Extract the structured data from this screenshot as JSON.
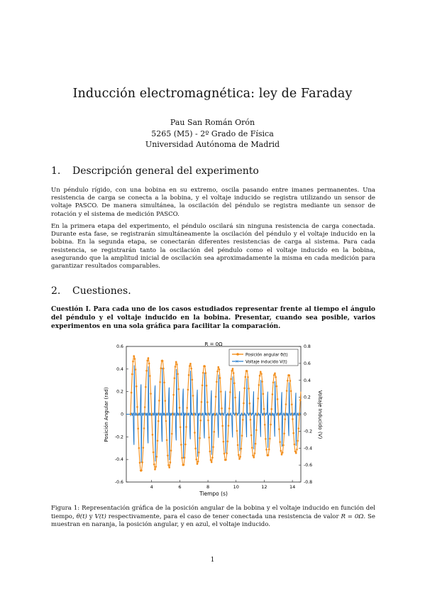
{
  "title": "Inducción electromagnética: ley de Faraday",
  "author": {
    "name": "Pau San Román Orón",
    "course": "5265 (M5) - 2º Grado de Física",
    "university": "Universidad Autónoma de Madrid"
  },
  "sections": [
    {
      "number": "1.",
      "title": "Descripción general del experimento"
    },
    {
      "number": "2.",
      "title": "Cuestiones."
    }
  ],
  "paragraphs": [
    "Un péndulo rígido, con una bobina en su extremo, oscila pasando entre imanes permanentes. Una resistencia de carga se conecta a la bobina, y el voltaje inducido se registra utilizando un sensor de voltaje PASCO. De manera simultánea, la oscilación del péndulo se registra mediante un sensor de rotación y el sistema de medición PASCO.",
    "En la primera etapa del experimento, el péndulo oscilará sin ninguna resistencia de carga conectada. Durante esta fase, se registrarán simultáneamente la oscilación del péndulo y el voltaje inducido en la bobina. En la segunda etapa, se conectarán diferentes resistencias de carga al sistema. Para cada resistencia, se registrarán tanto la oscilación del péndulo como el voltaje inducido en la bobina, asegurando que la amplitud inicial de oscilación sea aproximadamente la misma en cada medición para garantizar resultados comparables."
  ],
  "question": "Cuestión I. Para cada uno de los casos estudiados representar frente al tiempo el ángulo del péndulo y el voltaje inducido en la bobina. Presentar, cuando sea posible, varios experimentos en una sola gráfica para facilitar la comparación.",
  "caption": {
    "prefix": "Figura 1: Representación gráfica de la posición angular de la bobina y el voltaje inducido en función del tiempo, ",
    "math1": "θ(t)",
    "mid1": " y ",
    "math2": "V(t)",
    "mid2": " respectivamente, para el caso de tener conectada una resistencia de valor ",
    "math3": "R = 0Ω",
    "suffix": ". Se muestran en naranja, la posición angular, y en azul, el voltaje inducido."
  },
  "page_number": "1",
  "colors": {
    "angle": "#f28e1c",
    "voltage": "#1f77c9"
  },
  "chart_data": {
    "type": "line",
    "title": "R = 0Ω",
    "xlabel": "Tiempo (s)",
    "ylabel_left": "Posición Angular (rad)",
    "ylabel_right": "Voltaje Inducido (V)",
    "xlim": [
      2.2,
      14.6
    ],
    "xticks": [
      4,
      6,
      8,
      10,
      12,
      14
    ],
    "ylim_left": [
      -0.6,
      0.6
    ],
    "yticks_left": [
      -0.6,
      -0.4,
      -0.2,
      0,
      0.2,
      0.4,
      0.6
    ],
    "ytick_labels_left": [
      "-0.6",
      "-0.4",
      "-0.2",
      "0",
      "0.2",
      "0.4",
      "0.6"
    ],
    "ylim_right": [
      -0.8,
      0.8
    ],
    "yticks_right": [
      -0.8,
      -0.6,
      -0.4,
      -0.2,
      0,
      0.2,
      0.4,
      0.6,
      0.8
    ],
    "ytick_labels_right": [
      "-0.8",
      "-0.6",
      "-0.4",
      "-0.2",
      "0",
      "0.2",
      "0.4",
      "0.6",
      "0.8"
    ],
    "legend_position": "top-right",
    "series": [
      {
        "name": "Posición angular θ(t)",
        "axis": "left",
        "model": "damped-sine",
        "amplitude0": 0.52,
        "period": 1.0,
        "decay": 0.035,
        "t0": 2.5
      },
      {
        "name": "Voltaje inducido V(t)",
        "axis": "right",
        "model": "spikes",
        "peak0": 0.6,
        "period": 1.0,
        "decay": 0.035,
        "t0": 2.5
      }
    ]
  }
}
